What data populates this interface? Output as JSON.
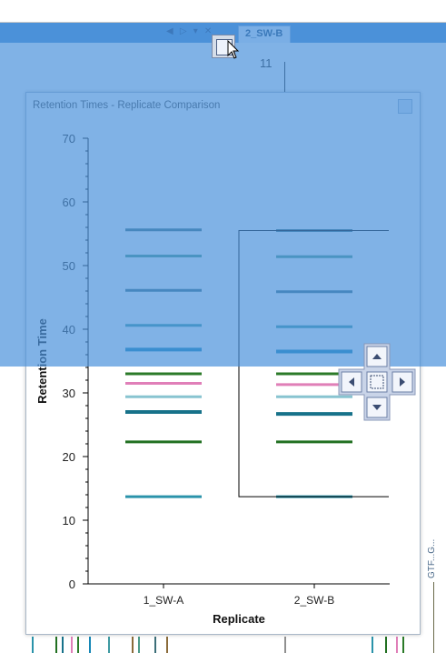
{
  "tabs": {
    "active_label": "2_SW-B"
  },
  "background": {
    "axis_number": "11",
    "side_label": "GTF...G..."
  },
  "window": {
    "title": "Retention Times - Replicate Comparison"
  },
  "colors": {
    "dock_overlay": "#4a91db",
    "accent": "#4d8fd4"
  },
  "chart_data": {
    "type": "scatter",
    "title": "",
    "xlabel": "Replicate",
    "ylabel": "Retention Time",
    "categories": [
      "1_SW-A",
      "2_SW-B"
    ],
    "ylim": [
      0,
      70
    ],
    "yticks": [
      "0",
      "10",
      "20",
      "30",
      "40",
      "50",
      "60",
      "70"
    ],
    "series": [
      {
        "values": [
          55.6,
          55.5
        ],
        "color": "#3c6e78"
      },
      {
        "values": [
          51.5,
          51.4
        ],
        "color": "#4b9a88"
      },
      {
        "values": [
          46.1,
          45.9
        ],
        "color": "#3f7180"
      },
      {
        "values": [
          40.6,
          40.4
        ],
        "color": "#3e9aa2"
      },
      {
        "values": [
          36.8,
          36.5
        ],
        "color": "#1687b6"
      },
      {
        "values": [
          33.0,
          33.0
        ],
        "color": "#2b7a28"
      },
      {
        "values": [
          31.5,
          31.3
        ],
        "color": "#e07fb8"
      },
      {
        "values": [
          29.4,
          29.4
        ],
        "color": "#88c4d0"
      },
      {
        "values": [
          27.0,
          26.7
        ],
        "color": "#17728a"
      },
      {
        "values": [
          22.3,
          22.3
        ],
        "color": "#227022"
      },
      {
        "values": [
          13.7,
          13.7
        ],
        "color": "#2a93aa"
      }
    ]
  }
}
